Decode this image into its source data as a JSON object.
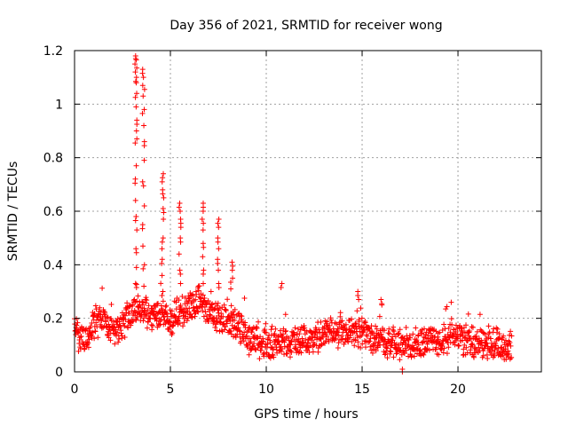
{
  "chart_data": {
    "type": "scatter",
    "title": "Day 356 of 2021, SRMTID for receiver wong",
    "xlabel": "GPS time / hours",
    "ylabel": "SRMTID / TECUs",
    "xlim": [
      0,
      24.35
    ],
    "ylim": [
      0,
      1.2
    ],
    "xticks": [
      0,
      5,
      10,
      15,
      20
    ],
    "xtick_labels": [
      "0",
      "5",
      "10",
      "15",
      "20"
    ],
    "yticks": [
      0,
      0.2,
      0.4,
      0.6,
      0.8,
      1.0,
      1.2
    ],
    "ytick_labels": [
      "0",
      "0.2",
      "0.4",
      "0.6",
      "0.8",
      "1",
      "1.2"
    ],
    "grid": true,
    "marker": "+",
    "color": "#ff0000",
    "baseline_profile": [
      [
        0.0,
        0.14
      ],
      [
        0.5,
        0.12
      ],
      [
        1.0,
        0.18
      ],
      [
        1.5,
        0.2
      ],
      [
        2.0,
        0.13
      ],
      [
        2.5,
        0.17
      ],
      [
        3.0,
        0.22
      ],
      [
        3.5,
        0.24
      ],
      [
        4.0,
        0.2
      ],
      [
        4.5,
        0.22
      ],
      [
        5.0,
        0.18
      ],
      [
        5.5,
        0.22
      ],
      [
        6.0,
        0.24
      ],
      [
        6.5,
        0.28
      ],
      [
        7.0,
        0.22
      ],
      [
        7.5,
        0.2
      ],
      [
        8.0,
        0.2
      ],
      [
        8.5,
        0.18
      ],
      [
        9.0,
        0.13
      ],
      [
        9.5,
        0.11
      ],
      [
        10.0,
        0.1
      ],
      [
        11.0,
        0.11
      ],
      [
        12.0,
        0.12
      ],
      [
        13.0,
        0.13
      ],
      [
        14.0,
        0.15
      ],
      [
        15.0,
        0.14
      ],
      [
        16.0,
        0.12
      ],
      [
        17.0,
        0.1
      ],
      [
        18.0,
        0.11
      ],
      [
        19.0,
        0.12
      ],
      [
        20.0,
        0.13
      ],
      [
        21.0,
        0.1
      ],
      [
        22.0,
        0.1
      ],
      [
        22.8,
        0.09
      ]
    ],
    "peaks": [
      {
        "x": 3.2,
        "values": [
          1.18,
          1.17,
          1.15,
          1.12,
          1.1,
          1.08,
          1.04,
          0.99,
          0.94,
          0.9,
          0.87,
          0.77,
          0.72,
          0.64,
          0.58,
          0.53,
          0.46,
          0.39,
          0.33
        ]
      },
      {
        "x": 3.6,
        "values": [
          1.13,
          1.1,
          1.07,
          1.03,
          0.98,
          0.92,
          0.86,
          0.79,
          0.71,
          0.62,
          0.55,
          0.47,
          0.4,
          0.32
        ]
      },
      {
        "x": 4.6,
        "values": [
          0.74,
          0.71,
          0.68,
          0.65,
          0.61,
          0.57,
          0.5,
          0.46,
          0.42,
          0.36,
          0.3
        ]
      },
      {
        "x": 5.5,
        "values": [
          0.63,
          0.6,
          0.57,
          0.54,
          0.5,
          0.44,
          0.38,
          0.33
        ]
      },
      {
        "x": 6.7,
        "values": [
          0.63,
          0.6,
          0.57,
          0.53,
          0.48,
          0.43,
          0.38,
          0.33
        ]
      },
      {
        "x": 7.5,
        "values": [
          0.57,
          0.54,
          0.5,
          0.46,
          0.42,
          0.38,
          0.33
        ]
      },
      {
        "x": 8.2,
        "values": [
          0.41,
          0.38,
          0.35,
          0.31
        ]
      },
      {
        "x": 10.8,
        "values": [
          0.33
        ]
      },
      {
        "x": 14.8,
        "values": [
          0.3,
          0.27
        ]
      },
      {
        "x": 16.0,
        "values": [
          0.27,
          0.25
        ]
      }
    ],
    "outliers": [
      [
        17.1,
        0.0
      ],
      [
        17.1,
        0.01
      ]
    ]
  }
}
